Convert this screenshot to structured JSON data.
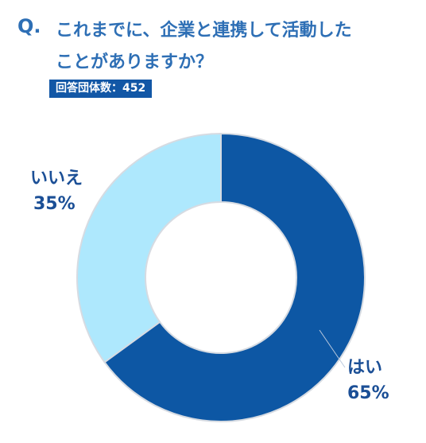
{
  "question": {
    "mark": "Q.",
    "line1": "これまでに、企業と連携して活動した",
    "line2": "ことがありますか？"
  },
  "badge": {
    "label": "回答団体数",
    "separator": "：",
    "count": "452"
  },
  "colors": {
    "accent": "#2e6fb5",
    "yes": "#0d57a4",
    "no": "#aee8fd",
    "badge_bg": "#1257a6"
  },
  "chart_data": {
    "type": "pie",
    "variant": "donut",
    "categories": [
      "はい",
      "いいえ"
    ],
    "values": [
      65,
      35
    ],
    "value_labels": [
      "65%",
      "35%"
    ],
    "start": "12 o'clock, clockwise",
    "legend": "none"
  }
}
